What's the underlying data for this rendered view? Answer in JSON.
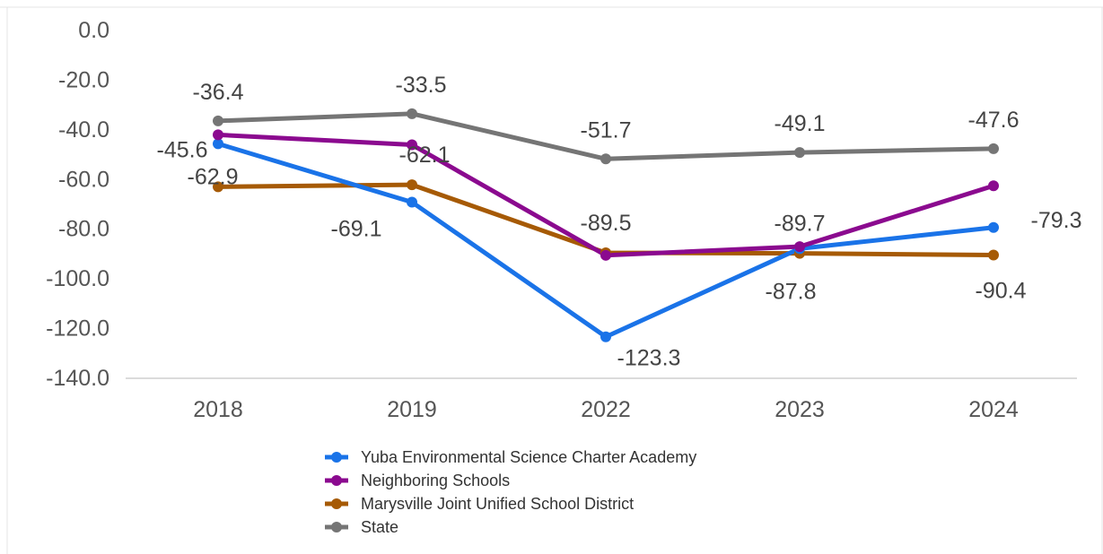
{
  "chart_data": {
    "type": "line",
    "title": "",
    "xlabel": "",
    "ylabel": "",
    "categories": [
      "2018",
      "2019",
      "2022",
      "2023",
      "2024"
    ],
    "ylim": [
      -140,
      0
    ],
    "yticks": [
      0,
      -20,
      -40,
      -60,
      -80,
      -100,
      -120,
      -140
    ],
    "ytick_labels": [
      "0.0",
      "-20.0",
      "-40.0",
      "-60.0",
      "-80.0",
      "-100.0",
      "-120.0",
      "-140.0"
    ],
    "grid": false,
    "legend_position": "bottom",
    "series": [
      {
        "name": "Yuba Environmental Science Charter Academy",
        "color": "#1a73e8",
        "values": [
          -45.6,
          -69.1,
          -123.3,
          -87.8,
          -79.3
        ],
        "labels": [
          "-45.6",
          "-69.1",
          "-123.3",
          "-87.8",
          "-79.3"
        ]
      },
      {
        "name": "Neighboring Schools",
        "color": "#8b0a8f",
        "values": [
          -42.0,
          -46.0,
          -90.5,
          -87.0,
          -62.5
        ],
        "labels": [
          "",
          "",
          "",
          "",
          ""
        ]
      },
      {
        "name": "Marysville Joint Unified School District",
        "color": "#a65a05",
        "values": [
          -62.9,
          -62.1,
          -89.5,
          -89.7,
          -90.4
        ],
        "labels": [
          "-62.9",
          "-62.1",
          "-89.5",
          "-89.7",
          "-90.4"
        ]
      },
      {
        "name": "State",
        "color": "#757575",
        "values": [
          -36.4,
          -33.5,
          -51.7,
          -49.1,
          -47.6
        ],
        "labels": [
          "-36.4",
          "-33.5",
          "-51.7",
          "-49.1",
          "-47.6"
        ]
      }
    ]
  }
}
